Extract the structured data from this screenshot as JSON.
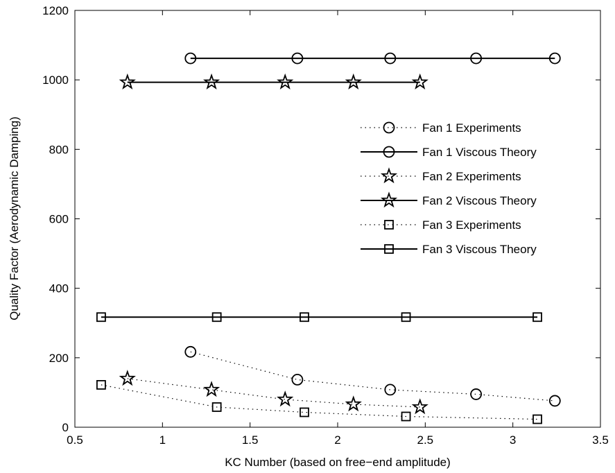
{
  "chart_data": {
    "type": "line",
    "title": "",
    "xlabel": "KC Number (based on free−end amplitude)",
    "ylabel": "Quality Factor (Aerodynamic Damping)",
    "xlim": [
      0.5,
      3.5
    ],
    "ylim": [
      0,
      1200
    ],
    "xticks": [
      "0.5",
      "1",
      "1.5",
      "2",
      "2.5",
      "3",
      "3.5"
    ],
    "yticks": [
      "0",
      "200",
      "400",
      "600",
      "800",
      "1000",
      "1200"
    ],
    "grid": false,
    "legend_position": "right",
    "series": [
      {
        "name": "Fan 1 Experiments",
        "marker": "circle",
        "line": "dotted",
        "x": [
          1.16,
          1.77,
          2.3,
          2.79,
          3.24
        ],
        "y": [
          217,
          137,
          108,
          95,
          76
        ]
      },
      {
        "name": "Fan 1 Viscous Theory",
        "marker": "circle",
        "line": "solid",
        "x": [
          1.16,
          1.77,
          2.3,
          2.79,
          3.24
        ],
        "y": [
          1062,
          1062,
          1062,
          1062,
          1062
        ]
      },
      {
        "name": "Fan 2 Experiments",
        "marker": "star",
        "line": "dotted",
        "x": [
          0.8,
          1.28,
          1.7,
          2.09,
          2.47
        ],
        "y": [
          140,
          108,
          80,
          66,
          58
        ]
      },
      {
        "name": "Fan 2 Viscous Theory",
        "marker": "star",
        "line": "solid",
        "x": [
          0.8,
          1.28,
          1.7,
          2.09,
          2.47
        ],
        "y": [
          993,
          993,
          993,
          993,
          993
        ]
      },
      {
        "name": "Fan 3 Experiments",
        "marker": "square",
        "line": "dotted",
        "x": [
          0.65,
          1.31,
          1.81,
          2.39,
          3.14
        ],
        "y": [
          122,
          58,
          43,
          31,
          23
        ]
      },
      {
        "name": "Fan 3 Viscous Theory",
        "marker": "square",
        "line": "solid",
        "x": [
          0.65,
          1.31,
          1.81,
          2.39,
          3.14
        ],
        "y": [
          317,
          317,
          317,
          317,
          317
        ]
      }
    ]
  }
}
